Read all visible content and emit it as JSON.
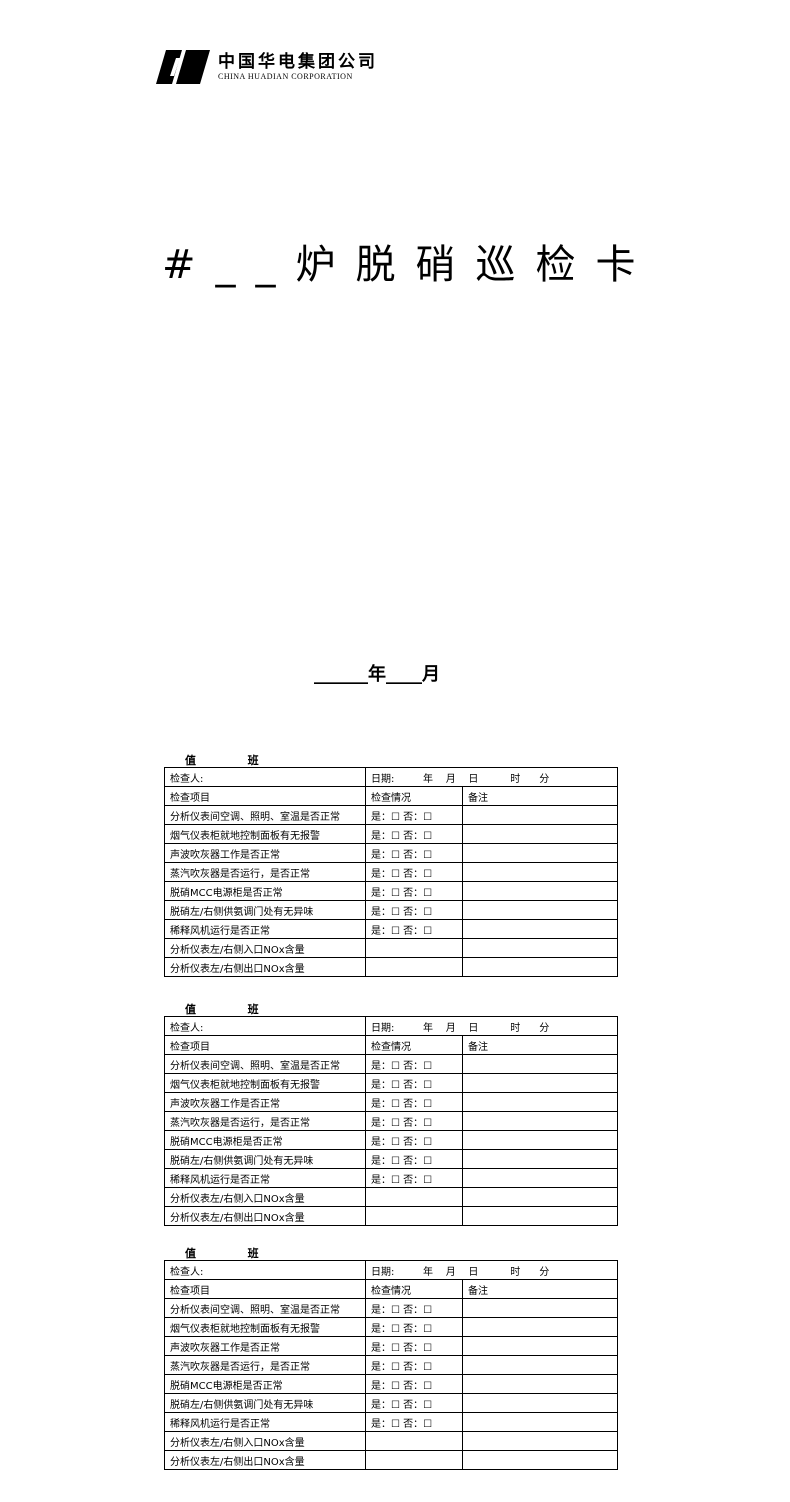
{
  "logo": {
    "cn": "中国华电集团公司",
    "en": "CHINA HUADIAN CORPORATION"
  },
  "title": "#__炉脱硝巡检卡",
  "date_line": "______年____月",
  "shift_label": "值  班",
  "card": {
    "inspector": "检查人:",
    "date": "日期:         年    月    日          时      分",
    "col_item": "检查项目",
    "col_status": "检查情况",
    "col_note": "备注",
    "checkbox": "是：☐ 否：☐",
    "items": [
      "分析仪表间空调、照明、室温是否正常",
      "烟气仪表柜就地控制面板有无报警",
      "声波吹灰器工作是否正常",
      "蒸汽吹灰器是否运行，是否正常",
      "脱硝MCC电源柜是否正常",
      "脱硝左/右侧供氨调门处有无异味",
      "稀释风机运行是否正常"
    ],
    "measures": [
      "分析仪表左/右侧入口NOx含量",
      "分析仪表左/右侧出口NOx含量"
    ]
  },
  "cards": 3
}
